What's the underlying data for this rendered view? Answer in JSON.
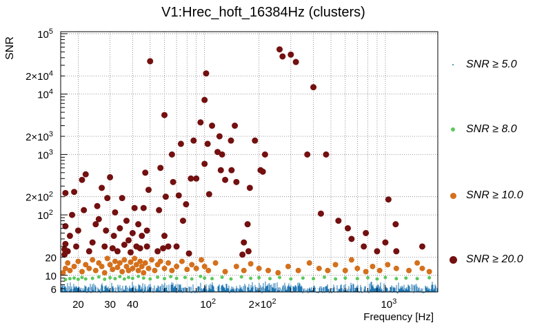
{
  "chart_data": {
    "type": "scatter",
    "title": "V1:Hrec_hoft_16384Hz (clusters)",
    "xlabel": "Frequency [Hz]",
    "ylabel": "SNR",
    "xscale": "log",
    "yscale": "log",
    "xlim": [
      16,
      1950
    ],
    "ylim": [
      5.3,
      108000
    ],
    "x_ticks": [
      {
        "value": 20,
        "label": "20"
      },
      {
        "value": 30,
        "label": "30"
      },
      {
        "value": 40,
        "label": "40"
      },
      {
        "value": 100,
        "label": "10",
        "sup": "2"
      },
      {
        "value": 200,
        "label": "2×10",
        "sup": "2"
      },
      {
        "value": 1000,
        "label": "10",
        "sup": "3"
      }
    ],
    "y_ticks": [
      {
        "value": 6,
        "label": "6"
      },
      {
        "value": 10,
        "label": "10"
      },
      {
        "value": 20,
        "label": "20"
      },
      {
        "value": 100,
        "label": "10",
        "sup": "2"
      },
      {
        "value": 200,
        "label": "2×10",
        "sup": "2"
      },
      {
        "value": 1000,
        "label": "10",
        "sup": "3"
      },
      {
        "value": 2000,
        "label": "2×10",
        "sup": "3"
      },
      {
        "value": 10000,
        "label": "10",
        "sup": "4"
      },
      {
        "value": 20000,
        "label": "2×10",
        "sup": "4"
      },
      {
        "value": 100000,
        "label": "10",
        "sup": "5"
      }
    ],
    "grid": true,
    "legend_position": "right",
    "series": [
      {
        "name": "SNR ≥ 5.0",
        "color": "#1f77b4",
        "marker": "spike",
        "snr_range": [
          5.0,
          8.0
        ],
        "x_range": [
          16,
          1950
        ]
      },
      {
        "name": "SNR ≥ 8.0",
        "color": "#5dc85d",
        "marker": "dot-small",
        "points": [
          [
            17,
            8.5
          ],
          [
            18,
            8.8
          ],
          [
            19,
            9
          ],
          [
            20,
            8.6
          ],
          [
            21,
            9.2
          ],
          [
            22,
            8.7
          ],
          [
            24,
            8.9
          ],
          [
            26,
            9.4
          ],
          [
            28,
            8.6
          ],
          [
            30,
            9.1
          ],
          [
            32,
            8.8
          ],
          [
            34,
            9.5
          ],
          [
            36,
            8.7
          ],
          [
            38,
            9.2
          ],
          [
            40,
            8.9
          ],
          [
            43,
            9.6
          ],
          [
            46,
            9.0
          ],
          [
            50,
            8.7
          ],
          [
            55,
            9.3
          ],
          [
            60,
            8.8
          ],
          [
            65,
            9.5
          ],
          [
            70,
            8.9
          ],
          [
            78,
            9.2
          ],
          [
            85,
            8.7
          ],
          [
            95,
            9.6
          ],
          [
            100,
            9.0
          ],
          [
            110,
            8.8
          ],
          [
            125,
            9.3
          ],
          [
            140,
            8.7
          ],
          [
            160,
            9.4
          ],
          [
            180,
            8.9
          ],
          [
            200,
            9.1
          ],
          [
            230,
            8.8
          ],
          [
            260,
            9.2
          ],
          [
            300,
            8.7
          ],
          [
            350,
            9.0
          ],
          [
            400,
            8.8
          ],
          [
            460,
            9.3
          ],
          [
            530,
            8.7
          ],
          [
            600,
            9.0
          ],
          [
            700,
            8.8
          ],
          [
            800,
            9.1
          ],
          [
            900,
            8.7
          ],
          [
            1000,
            9.2
          ],
          [
            1150,
            8.8
          ],
          [
            1300,
            9.0
          ],
          [
            1500,
            8.8
          ],
          [
            1750,
            9.1
          ]
        ]
      },
      {
        "name": "SNR ≥ 10.0",
        "color": "#d4701c",
        "marker": "dot-medium",
        "points": [
          [
            16.5,
            11
          ],
          [
            17,
            13
          ],
          [
            17.5,
            16
          ],
          [
            18,
            12
          ],
          [
            19,
            14
          ],
          [
            20,
            17
          ],
          [
            21,
            11.5
          ],
          [
            22,
            15
          ],
          [
            23,
            13
          ],
          [
            24,
            18
          ],
          [
            25,
            12
          ],
          [
            26,
            16
          ],
          [
            27,
            14
          ],
          [
            28,
            11
          ],
          [
            29,
            19
          ],
          [
            30,
            15
          ],
          [
            31,
            12.5
          ],
          [
            32,
            17
          ],
          [
            33,
            13.5
          ],
          [
            34,
            16
          ],
          [
            35,
            11.5
          ],
          [
            36,
            18
          ],
          [
            37,
            14
          ],
          [
            38,
            12
          ],
          [
            39,
            16.5
          ],
          [
            40,
            13
          ],
          [
            41,
            19
          ],
          [
            42,
            15
          ],
          [
            43,
            12
          ],
          [
            44,
            17
          ],
          [
            45,
            14
          ],
          [
            46,
            11
          ],
          [
            47,
            16
          ],
          [
            49,
            13
          ],
          [
            51,
            18
          ],
          [
            53,
            12
          ],
          [
            55,
            15
          ],
          [
            57,
            17
          ],
          [
            60,
            13
          ],
          [
            63,
            16
          ],
          [
            66,
            12
          ],
          [
            70,
            14
          ],
          [
            75,
            17
          ],
          [
            80,
            12.5
          ],
          [
            85,
            15
          ],
          [
            90,
            13
          ],
          [
            96,
            18
          ],
          [
            100,
            14
          ],
          [
            105,
            12
          ],
          [
            115,
            16
          ],
          [
            130,
            11.5
          ],
          [
            150,
            14
          ],
          [
            165,
            12
          ],
          [
            180,
            15.5
          ],
          [
            200,
            13
          ],
          [
            225,
            12
          ],
          [
            255,
            11
          ],
          [
            290,
            14
          ],
          [
            330,
            12
          ],
          [
            380,
            16
          ],
          [
            430,
            13
          ],
          [
            480,
            12
          ],
          [
            530,
            15
          ],
          [
            600,
            12
          ],
          [
            650,
            18
          ],
          [
            700,
            13
          ],
          [
            780,
            11.5
          ],
          [
            850,
            14
          ],
          [
            930,
            12
          ],
          [
            1030,
            15
          ],
          [
            1150,
            13
          ],
          [
            1350,
            12
          ],
          [
            1500,
            16
          ],
          [
            1600,
            13
          ],
          [
            1750,
            11.5
          ]
        ]
      },
      {
        "name": "SNR ≥ 20.0",
        "color": "#731010",
        "marker": "dot-large",
        "points": [
          [
            16.8,
            22
          ],
          [
            16.8,
            27
          ],
          [
            17,
            33
          ],
          [
            17,
            65
          ],
          [
            17,
            230
          ],
          [
            17.5,
            25
          ],
          [
            18,
            45
          ],
          [
            18.5,
            100
          ],
          [
            19,
            240
          ],
          [
            19.5,
            30
          ],
          [
            20,
            55
          ],
          [
            21,
            380
          ],
          [
            21.5,
            120
          ],
          [
            22,
            470
          ],
          [
            23,
            25
          ],
          [
            24,
            35
          ],
          [
            25,
            70
          ],
          [
            25.5,
            140
          ],
          [
            26,
            85
          ],
          [
            27,
            280
          ],
          [
            28,
            30
          ],
          [
            28.5,
            55
          ],
          [
            29,
            190
          ],
          [
            30,
            420
          ],
          [
            31,
            28
          ],
          [
            31.5,
            45
          ],
          [
            32,
            110
          ],
          [
            33,
            25
          ],
          [
            34,
            60
          ],
          [
            35,
            190
          ],
          [
            36,
            32
          ],
          [
            37,
            80
          ],
          [
            38,
            38
          ],
          [
            39,
            24
          ],
          [
            40,
            50
          ],
          [
            41,
            130
          ],
          [
            42,
            30
          ],
          [
            43,
            70
          ],
          [
            44,
            28
          ],
          [
            45,
            45
          ],
          [
            46,
            130
          ],
          [
            47,
            500
          ],
          [
            48,
            30
          ],
          [
            48,
            55
          ],
          [
            49,
            260
          ],
          [
            50,
            35000
          ],
          [
            55,
            25
          ],
          [
            56,
            120
          ],
          [
            57,
            600
          ],
          [
            59,
            28
          ],
          [
            60,
            45
          ],
          [
            60,
            4500
          ],
          [
            61,
            200
          ],
          [
            63,
            30
          ],
          [
            66,
            1000
          ],
          [
            67,
            350
          ],
          [
            70,
            30
          ],
          [
            72,
            210
          ],
          [
            74,
            1500
          ],
          [
            76,
            80
          ],
          [
            79,
            150
          ],
          [
            82,
            23
          ],
          [
            84,
            400
          ],
          [
            87,
            1700
          ],
          [
            90,
            400
          ],
          [
            95,
            3400
          ],
          [
            100,
            700
          ],
          [
            100,
            8000
          ],
          [
            102,
            22000
          ],
          [
            104,
            1500
          ],
          [
            106,
            220
          ],
          [
            110,
            3000
          ],
          [
            118,
            1100
          ],
          [
            121,
            2000
          ],
          [
            123,
            550
          ],
          [
            125,
            1000
          ],
          [
            130,
            380
          ],
          [
            140,
            1700
          ],
          [
            141,
            550
          ],
          [
            147,
            3000
          ],
          [
            150,
            350
          ],
          [
            162,
            22
          ],
          [
            165,
            35
          ],
          [
            173,
            70
          ],
          [
            175,
            25
          ],
          [
            178,
            280
          ],
          [
            190,
            1700
          ],
          [
            204,
            550
          ],
          [
            210,
            520
          ],
          [
            216,
            1000
          ],
          [
            260,
            55000
          ],
          [
            270,
            42000
          ],
          [
            300,
            45000
          ],
          [
            320,
            34000
          ],
          [
            370,
            1000
          ],
          [
            400,
            13000
          ],
          [
            440,
            105
          ],
          [
            470,
            1000
          ],
          [
            550,
            80
          ],
          [
            620,
            60
          ],
          [
            650,
            40
          ],
          [
            760,
            30
          ],
          [
            780,
            50
          ],
          [
            900,
            25
          ],
          [
            1000,
            35
          ],
          [
            1040,
            180
          ],
          [
            1140,
            70
          ],
          [
            1150,
            25
          ],
          [
            1600,
            30
          ]
        ]
      }
    ]
  }
}
